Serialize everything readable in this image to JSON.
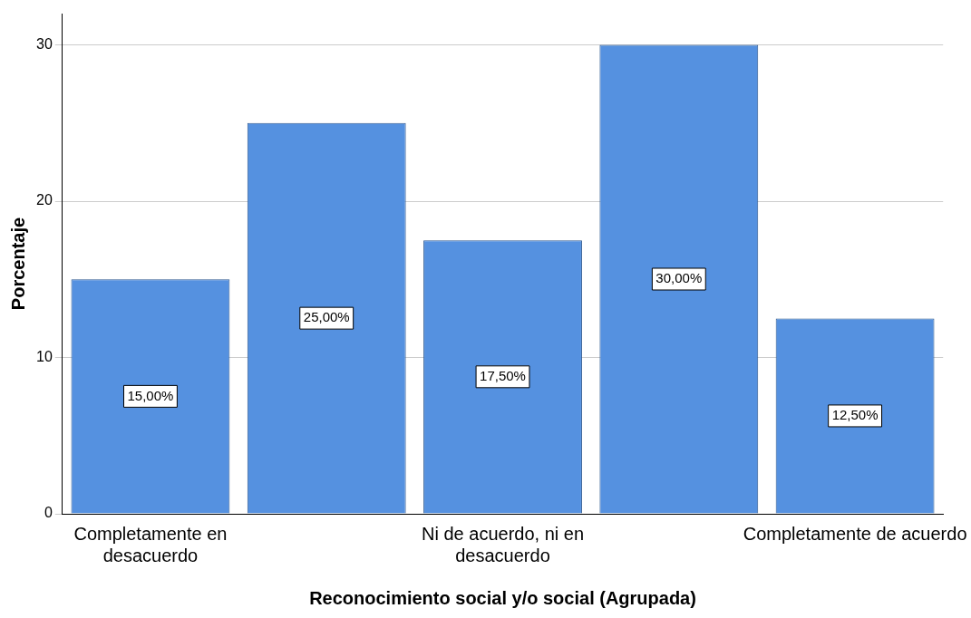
{
  "chart_data": {
    "type": "bar",
    "xlabel": "Reconocimiento social y/o social (Agrupada)",
    "ylabel": "Porcentaje",
    "categories": [
      "Completamente en desacuerdo",
      null,
      "Ni de acuerdo, ni en desacuerdo",
      null,
      "Completamente de acuerdo"
    ],
    "values": [
      15,
      25,
      17.5,
      30,
      12.5
    ],
    "color": "#5591e0",
    "value_labels": [
      "15,00%",
      "25,00%",
      "17,50%",
      "30,00%",
      "12,50%"
    ],
    "ylim": [
      0,
      32
    ],
    "yticks": [
      0,
      10,
      20,
      30
    ],
    "grid": "y",
    "legend": false
  }
}
